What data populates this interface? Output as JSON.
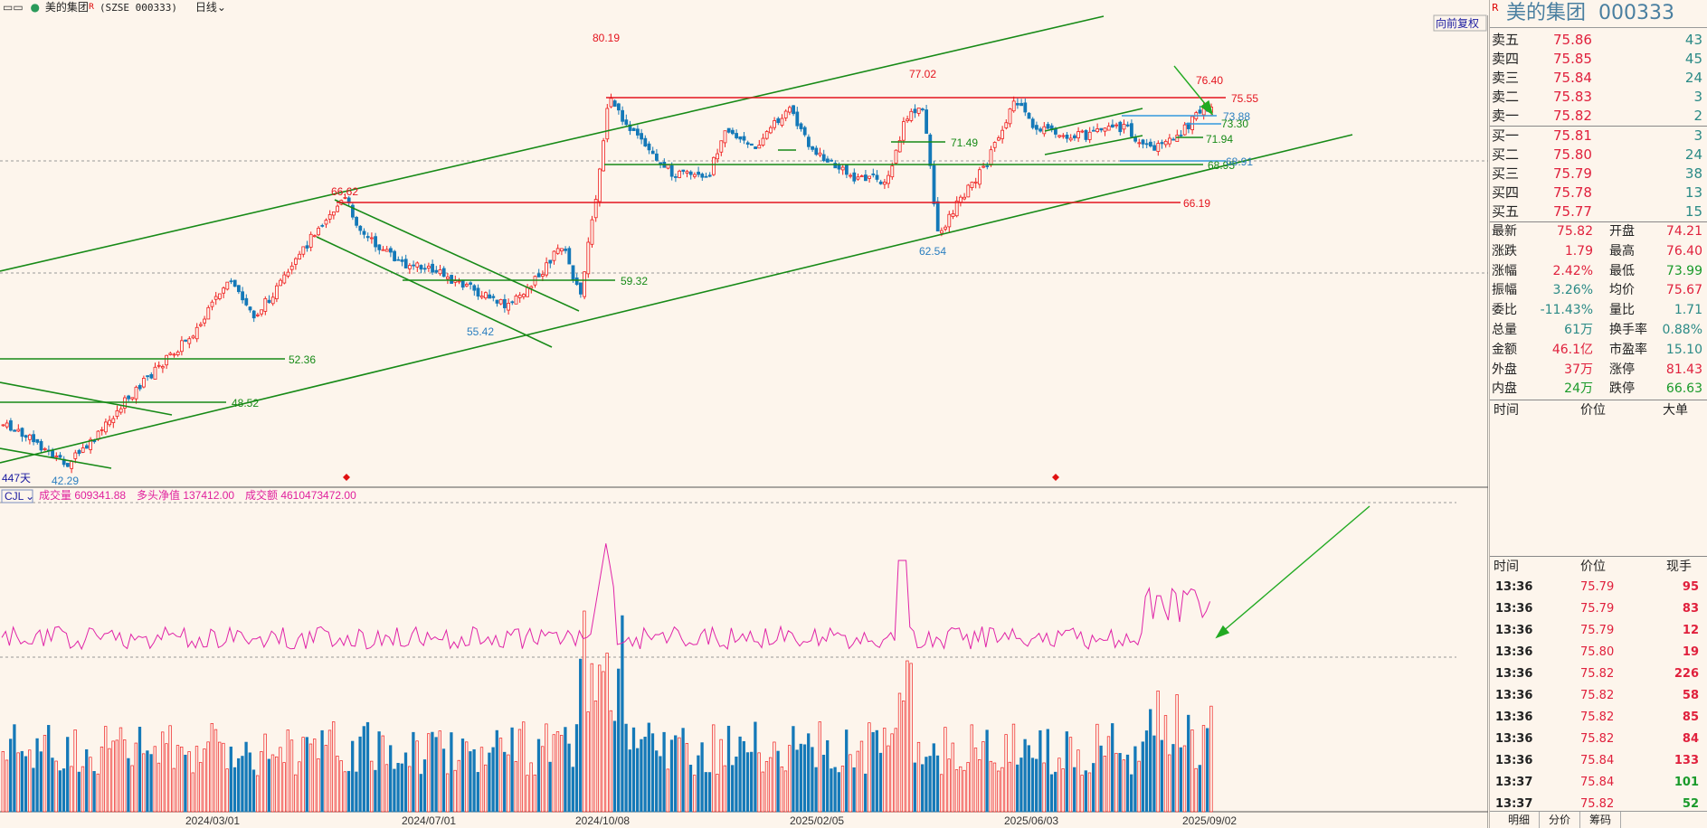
{
  "topbar": {
    "menu_icon": "menu-icon",
    "stock_name": "美的集团",
    "badge": "R",
    "exchange_code": "(SZSE 000333)",
    "period": "日线",
    "period_caret": "chevron-down-icon"
  },
  "chart": {
    "restore_button": "向前复权",
    "days_label": "447天",
    "date_labels": [
      "2024/03/01",
      "2024/07/01",
      "2024/10/08",
      "2025/02/05",
      "2025/06/03",
      "2025/09/02"
    ],
    "price_labels": {
      "high_80": "80.19",
      "high_77": "77.02",
      "high_76": "76.40",
      "high_66": "66.62",
      "low_62": "62.54",
      "low_55": "55.42",
      "low_42": "42.29",
      "line_7555": "75.55",
      "line_7388": "73.88",
      "line_7330": "73.30",
      "line_7194": "71.94",
      "line_7149": "71.49",
      "line_6895": "68.95",
      "line_6891": "68.91",
      "line_6619": "66.19",
      "line_5932": "59.32",
      "line_5236": "52.36",
      "line_4852": "48.52"
    },
    "indicator_name": "CJL",
    "indicator_fields": [
      {
        "label": "成交量 609341.88",
        "color": "#e0209c"
      },
      {
        "label": "多头净值 137412.00",
        "color": "#e0209c"
      },
      {
        "label": "成交额 4610473472.00",
        "color": "#e0209c"
      }
    ],
    "colors": {
      "up": "#ef1f1f",
      "down": "#1479b8",
      "trend": "#178a17",
      "resist": "#e4141e",
      "blue_line": "#3399dd",
      "arrow": "#22aa22",
      "pink": "#e024a8"
    }
  },
  "panel": {
    "name": "美的集团",
    "code": "000333",
    "badge": "R",
    "asks": [
      {
        "label": "卖五",
        "price": "75.86",
        "vol": "43"
      },
      {
        "label": "卖四",
        "price": "75.85",
        "vol": "45"
      },
      {
        "label": "卖三",
        "price": "75.84",
        "vol": "24"
      },
      {
        "label": "卖二",
        "price": "75.83",
        "vol": "3"
      },
      {
        "label": "卖一",
        "price": "75.82",
        "vol": "2"
      }
    ],
    "bids": [
      {
        "label": "买一",
        "price": "75.81",
        "vol": "3"
      },
      {
        "label": "买二",
        "price": "75.80",
        "vol": "24"
      },
      {
        "label": "买三",
        "price": "75.79",
        "vol": "38"
      },
      {
        "label": "买四",
        "price": "75.78",
        "vol": "13"
      },
      {
        "label": "买五",
        "price": "75.77",
        "vol": "15"
      }
    ],
    "stats": [
      {
        "l1": "最新",
        "v1": "75.82",
        "c1": "red",
        "l2": "开盘",
        "v2": "74.21",
        "c2": "red"
      },
      {
        "l1": "涨跌",
        "v1": "1.79",
        "c1": "red",
        "l2": "最高",
        "v2": "76.40",
        "c2": "red"
      },
      {
        "l1": "涨幅",
        "v1": "2.42%",
        "c1": "red",
        "l2": "最低",
        "v2": "73.99",
        "c2": "grn"
      },
      {
        "l1": "振幅",
        "v1": "3.26%",
        "c1": "teal",
        "l2": "均价",
        "v2": "75.67",
        "c2": "red"
      },
      {
        "l1": "委比",
        "v1": "-11.43%",
        "c1": "teal",
        "l2": "量比",
        "v2": "1.71",
        "c2": "teal"
      },
      {
        "l1": "总量",
        "v1": "61万",
        "c1": "teal",
        "l2": "换手率",
        "v2": "0.88%",
        "c2": "teal"
      },
      {
        "l1": "金额",
        "v1": "46.1亿",
        "c1": "red",
        "l2": "市盈率",
        "v2": "15.10",
        "c2": "teal"
      },
      {
        "l1": "外盘",
        "v1": "37万",
        "c1": "red",
        "l2": "涨停",
        "v2": "81.43",
        "c2": "red"
      },
      {
        "l1": "内盘",
        "v1": "24万",
        "c1": "grn",
        "l2": "跌停",
        "v2": "66.63",
        "c2": "grn"
      }
    ],
    "big_header": {
      "time": "时间",
      "price": "价位",
      "big": "大单"
    },
    "tick_header": {
      "time": "时间",
      "price": "价位",
      "vol": "现手"
    },
    "ticks": [
      {
        "time": "13:36",
        "price": "75.79",
        "vol": "95",
        "c": "red"
      },
      {
        "time": "13:36",
        "price": "75.79",
        "vol": "83",
        "c": "red"
      },
      {
        "time": "13:36",
        "price": "75.79",
        "vol": "12",
        "c": "red"
      },
      {
        "time": "13:36",
        "price": "75.80",
        "vol": "19",
        "c": "red"
      },
      {
        "time": "13:36",
        "price": "75.82",
        "vol": "226",
        "c": "red"
      },
      {
        "time": "13:36",
        "price": "75.82",
        "vol": "58",
        "c": "red"
      },
      {
        "time": "13:36",
        "price": "75.82",
        "vol": "85",
        "c": "red"
      },
      {
        "time": "13:36",
        "price": "75.82",
        "vol": "84",
        "c": "red"
      },
      {
        "time": "13:36",
        "price": "75.84",
        "vol": "133",
        "c": "red"
      },
      {
        "time": "13:37",
        "price": "75.84",
        "vol": "101",
        "c": "grn"
      },
      {
        "time": "13:37",
        "price": "75.82",
        "vol": "52",
        "c": "grn"
      }
    ],
    "tabs": [
      "明细",
      "分价",
      "筹码"
    ]
  }
}
